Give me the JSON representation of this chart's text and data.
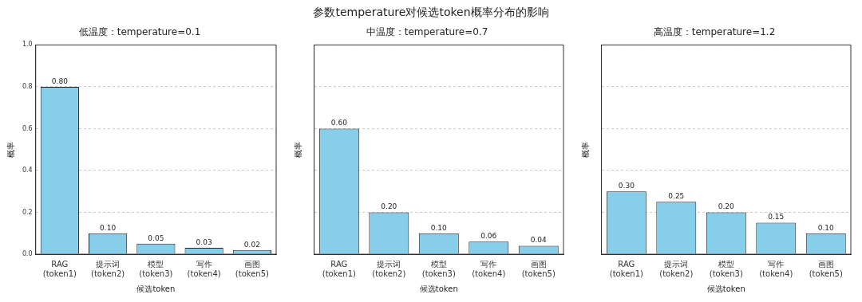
{
  "chart_data": [
    {
      "type": "bar",
      "title": "低温度：temperature=0.1",
      "xlabel": "候选token",
      "ylabel": "概率",
      "annotations": [
        "参数temperature对候选token概率分布的影响"
      ],
      "categories": [
        "RAG(token1)",
        "提示词(token2)",
        "模型(token3)",
        "写作(token4)",
        "画图(token5)"
      ],
      "values": [
        0.8,
        0.1,
        0.05,
        0.03,
        0.02
      ],
      "value_labels": [
        "0.80",
        "0.10",
        "0.05",
        "0.03",
        "0.02"
      ],
      "color": "#87ceeb",
      "ylim": [
        0,
        1
      ],
      "yticks": [
        {
          "value": 0,
          "label": "0.0"
        },
        0.2,
        0.4,
        0.6,
        0.8,
        {
          "value": 1,
          "label": "1.0"
        }
      ],
      "grid": "y"
    },
    {
      "type": "bar",
      "title": "中温度：temperature=0.7",
      "xlabel": "候选token",
      "ylabel": "概率",
      "categories": [
        "RAG(token1)",
        "提示词(token2)",
        "模型(token3)",
        "写作(token4)",
        "画图(token5)"
      ],
      "values": [
        0.6,
        0.2,
        0.1,
        0.06,
        0.04
      ],
      "value_labels": [
        "0.60",
        "0.20",
        "0.10",
        "0.06",
        "0.04"
      ],
      "color": "#87ceeb",
      "ylim": [
        0,
        1
      ],
      "yticks": [
        0,
        0.2,
        0.4,
        0.6,
        0.8,
        1
      ],
      "grid": "y",
      "tick_labels": "x"
    },
    {
      "type": "bar",
      "title": "高温度：temperature=1.2",
      "xlabel": "候选token",
      "ylabel": "概率",
      "categories": [
        "RAG(token1)",
        "提示词(token2)",
        "模型(token3)",
        "写作(token4)",
        "画图(token5)"
      ],
      "values": [
        0.3,
        0.25,
        0.2,
        0.15,
        0.1
      ],
      "value_labels": [
        "0.30",
        "0.25",
        "0.20",
        "0.15",
        "0.10"
      ],
      "color": "#87ceeb",
      "ylim": [
        0,
        1
      ],
      "yticks": [
        0,
        0.2,
        0.4,
        0.6,
        0.8,
        1
      ],
      "grid": "y",
      "tick_labels": "x"
    }
  ]
}
